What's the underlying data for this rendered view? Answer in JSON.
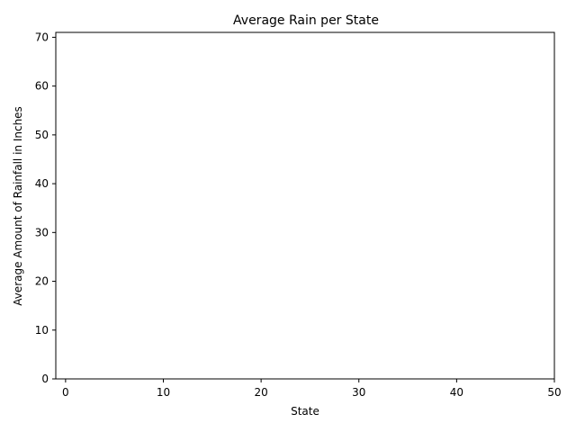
{
  "chart_data": {
    "type": "bar",
    "title": "Average Rain per State",
    "xlabel": "State",
    "ylabel": "Average Amount of Rainfall in Inches",
    "xlim": [
      -1,
      50
    ],
    "ylim": [
      0,
      71
    ],
    "xticks": [
      0,
      10,
      20,
      30,
      40,
      50
    ],
    "yticks": [
      0,
      10,
      20,
      30,
      40,
      50,
      60,
      70
    ],
    "grid": false,
    "legend": "none",
    "categories": [],
    "values": []
  },
  "colors": {
    "axis": "#000000",
    "background": "#ffffff"
  }
}
